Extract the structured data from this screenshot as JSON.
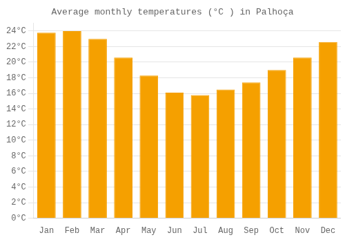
{
  "chart_data": {
    "type": "bar",
    "title": "Average monthly temperatures (°C ) in Palhoça",
    "categories": [
      "Jan",
      "Feb",
      "Mar",
      "Apr",
      "May",
      "Jun",
      "Jul",
      "Aug",
      "Sep",
      "Oct",
      "Nov",
      "Dec"
    ],
    "values": [
      23.8,
      24.0,
      23.0,
      20.6,
      18.3,
      16.1,
      15.8,
      16.5,
      17.4,
      19.0,
      20.6,
      22.6
    ],
    "color": "#F5A000",
    "ylim": [
      0,
      25
    ],
    "yticks": [
      {
        "value": 0,
        "label": "0°C"
      },
      {
        "value": 2,
        "label": "2°C"
      },
      {
        "value": 4,
        "label": "4°C"
      },
      {
        "value": 6,
        "label": "6°C"
      },
      {
        "value": 8,
        "label": "8°C"
      },
      {
        "value": 10,
        "label": "10°C"
      },
      {
        "value": 12,
        "label": "12°C"
      },
      {
        "value": 14,
        "label": "14°C"
      },
      {
        "value": 16,
        "label": "16°C"
      },
      {
        "value": 18,
        "label": "18°C"
      },
      {
        "value": 20,
        "label": "20°C"
      },
      {
        "value": 22,
        "label": "22°C"
      },
      {
        "value": 24,
        "label": "24°C"
      }
    ],
    "grid": true
  }
}
